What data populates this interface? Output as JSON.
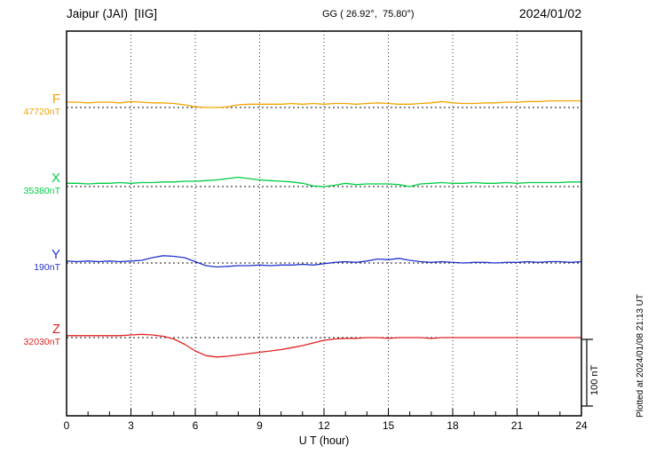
{
  "header": {
    "station": "Jaipur (JAI)  [IIG]",
    "coords": "GG ( 26.92°,  75.80°)",
    "date": "2024/01/02"
  },
  "axis": {
    "xlabel": "U T (hour)"
  },
  "scale_bar": {
    "label": "100 nT",
    "nT": 100
  },
  "footer": {
    "plotted_note": "Plotted at 2024/01/08 21:13 UT"
  },
  "chart_data": {
    "type": "line",
    "title": "Jaipur (JAI) [IIG] magnetogram 2024/01/02",
    "xlabel": "U T (hour)",
    "x_unit": "hour",
    "xlim": [
      0,
      24
    ],
    "x_ticks": [
      0,
      3,
      6,
      9,
      12,
      15,
      18,
      21,
      24
    ],
    "grid": "vertical-dotted-every-3h",
    "scale_bar_nT": 100,
    "series": [
      {
        "name": "F",
        "base_label": "47720nT",
        "base_value_nT": 47720,
        "color": "#f0a500",
        "x_start": 0,
        "x_step": 0.5,
        "offsets_nT": [
          8,
          8,
          7,
          8,
          8,
          7,
          9,
          8,
          7,
          7,
          6,
          4,
          1,
          0,
          0,
          1,
          4,
          5,
          5,
          5,
          5,
          6,
          5,
          6,
          5,
          6,
          6,
          5,
          6,
          7,
          6,
          5,
          5,
          6,
          7,
          9,
          7,
          6,
          6,
          7,
          7,
          8,
          8,
          9,
          9,
          10,
          10,
          10,
          10
        ]
      },
      {
        "name": "X",
        "base_label": "35380nT",
        "base_value_nT": 35380,
        "color": "#00cc44",
        "x_start": 0,
        "x_step": 0.5,
        "offsets_nT": [
          5,
          5,
          4,
          5,
          5,
          6,
          5,
          6,
          6,
          7,
          7,
          8,
          8,
          9,
          10,
          12,
          14,
          12,
          10,
          9,
          8,
          7,
          5,
          1,
          0,
          2,
          5,
          3,
          4,
          4,
          4,
          3,
          0,
          4,
          5,
          6,
          5,
          5,
          6,
          5,
          5,
          6,
          5,
          6,
          6,
          6,
          6,
          7,
          7
        ]
      },
      {
        "name": "Y",
        "base_label": "190nT",
        "base_value_nT": 190,
        "color": "#2233cc",
        "x_start": 0,
        "x_step": 0.5,
        "offsets_nT": [
          3,
          2,
          3,
          2,
          3,
          2,
          3,
          4,
          8,
          11,
          10,
          8,
          2,
          -4,
          -6,
          -5,
          -4,
          -4,
          -3,
          -4,
          -3,
          -3,
          -2,
          -3,
          -1,
          1,
          2,
          1,
          3,
          6,
          5,
          7,
          4,
          2,
          1,
          2,
          1,
          0,
          1,
          1,
          0,
          1,
          1,
          2,
          1,
          2,
          2,
          1,
          2
        ]
      },
      {
        "name": "Z",
        "base_label": "32030nT",
        "base_value_nT": 32030,
        "color": "#e02222",
        "x_start": 0,
        "x_step": 0.5,
        "offsets_nT": [
          3,
          3,
          3,
          3,
          3,
          3,
          4,
          5,
          4,
          2,
          -2,
          -10,
          -20,
          -27,
          -29,
          -28,
          -26,
          -24,
          -22,
          -20,
          -18,
          -15,
          -12,
          -8,
          -4,
          -2,
          -1,
          -1,
          0,
          0,
          -1,
          0,
          0,
          0,
          -1,
          0,
          0,
          0,
          0,
          0,
          0,
          0,
          0,
          0,
          0,
          0,
          0,
          0,
          0
        ]
      }
    ]
  }
}
